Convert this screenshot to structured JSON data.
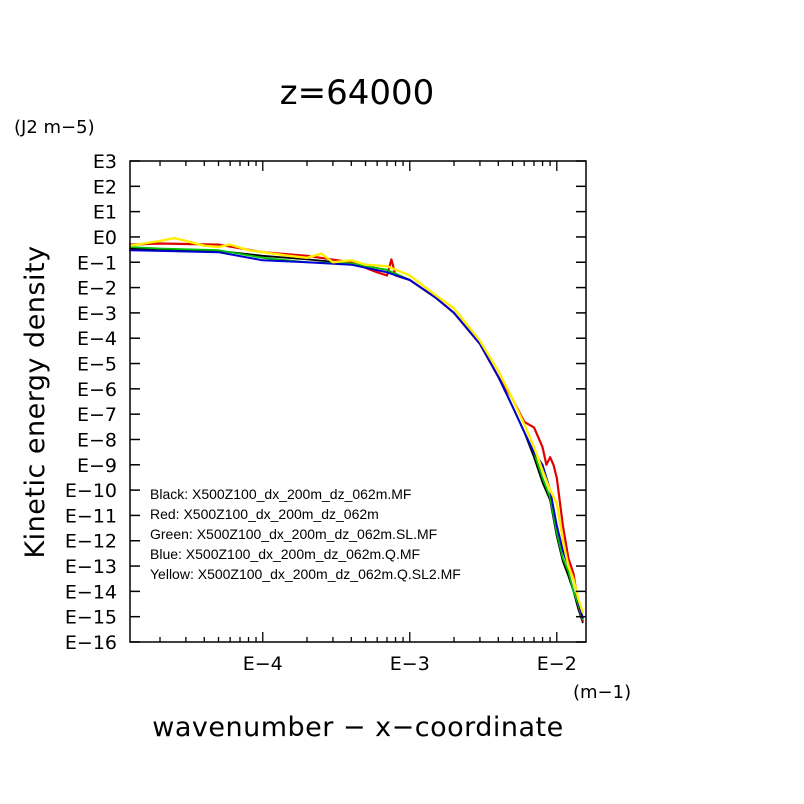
{
  "chart_data": {
    "type": "line",
    "title": "z=64000",
    "xlabel": "wavenumber − x−coordinate",
    "ylabel": "Kinetic energy density",
    "xunit": "(m−1)",
    "yunit": "(J2 m−5)",
    "x_scale": "log",
    "y_scale": "log",
    "xlim": [
      1.25e-05,
      0.0158
    ],
    "ylim": [
      1e-16,
      1000
    ],
    "x_ticks": [
      {
        "value": 0.0001,
        "label": "E−4"
      },
      {
        "value": 0.001,
        "label": "E−3"
      },
      {
        "value": 0.01,
        "label": "E−2"
      }
    ],
    "y_ticks": [
      {
        "value": 1000,
        "label": "E3"
      },
      {
        "value": 100,
        "label": "E2"
      },
      {
        "value": 10,
        "label": "E1"
      },
      {
        "value": 1,
        "label": "E0"
      },
      {
        "value": 0.1,
        "label": "E−1"
      },
      {
        "value": 0.01,
        "label": "E−2"
      },
      {
        "value": 0.001,
        "label": "E−3"
      },
      {
        "value": 0.0001,
        "label": "E−4"
      },
      {
        "value": 1e-05,
        "label": "E−5"
      },
      {
        "value": 1e-06,
        "label": "E−6"
      },
      {
        "value": 1e-07,
        "label": "E−7"
      },
      {
        "value": 1e-08,
        "label": "E−8"
      },
      {
        "value": 1e-09,
        "label": "E−9"
      },
      {
        "value": 1e-10,
        "label": "E−10"
      },
      {
        "value": 1e-11,
        "label": "E−11"
      },
      {
        "value": 1e-12,
        "label": "E−12"
      },
      {
        "value": 1e-13,
        "label": "E−13"
      },
      {
        "value": 1e-14,
        "label": "E−14"
      },
      {
        "value": 1e-15,
        "label": "E−15"
      },
      {
        "value": 1e-16,
        "label": "E−16"
      }
    ],
    "grid": false,
    "legend_position": "bottom-left",
    "legend": [
      "Black: X500Z100_dx_200m_dz_062m.MF",
      "Red: X500Z100_dx_200m_dz_062m",
      "Green: X500Z100_dx_200m_dz_062m.SL.MF",
      "Blue: X500Z100_dx_200m_dz_062m.Q.MF",
      "Yellow: X500Z100_dx_200m_dz_062m.Q.SL2.MF"
    ],
    "series": [
      {
        "color": "#000000",
        "x": [
          1.25e-05,
          2e-05,
          5e-05,
          0.0001,
          0.0002,
          0.0004,
          0.0007,
          0.001,
          0.0015,
          0.002,
          0.003,
          0.004,
          0.005,
          0.006,
          0.007,
          0.008,
          0.009,
          0.01,
          0.011,
          0.012,
          0.013,
          0.014,
          0.015
        ],
        "y": [
          0.35,
          0.3,
          0.28,
          0.18,
          0.13,
          0.09,
          0.05,
          0.02,
          0.004,
          0.001,
          6e-05,
          3e-06,
          2e-07,
          2e-08,
          2e-09,
          2e-10,
          4e-11,
          1.5e-12,
          1.5e-13,
          4e-14,
          1e-14,
          2e-15,
          6e-16
        ]
      },
      {
        "color": "#e00000",
        "x": [
          1.25e-05,
          2e-05,
          5e-05,
          0.0001,
          0.0002,
          0.0004,
          0.0006,
          0.0007,
          0.00075,
          0.0008,
          0.001,
          0.0015,
          0.002,
          0.003,
          0.004,
          0.005,
          0.006,
          0.007,
          0.008,
          0.0085,
          0.009,
          0.0095,
          0.01,
          0.011,
          0.012,
          0.013,
          0.014,
          0.015
        ],
        "y": [
          0.5,
          0.55,
          0.5,
          0.25,
          0.18,
          0.1,
          0.04,
          0.03,
          0.13,
          0.03,
          0.02,
          0.004,
          0.001,
          6e-05,
          3e-06,
          4e-07,
          5e-08,
          3e-08,
          5e-09,
          1e-09,
          2e-09,
          1e-09,
          3e-10,
          4e-12,
          2e-13,
          5e-14,
          3e-15,
          7e-16
        ]
      },
      {
        "color": "#00c000",
        "x": [
          1.25e-05,
          2e-05,
          5e-05,
          0.0001,
          0.0002,
          0.0004,
          0.0007,
          0.001,
          0.0015,
          0.002,
          0.003,
          0.004,
          0.005,
          0.006,
          0.007,
          0.008,
          0.009,
          0.01,
          0.011,
          0.012,
          0.013,
          0.014,
          0.015
        ],
        "y": [
          0.4,
          0.35,
          0.3,
          0.15,
          0.1,
          0.09,
          0.05,
          0.02,
          0.004,
          0.001,
          6e-05,
          3e-06,
          2e-07,
          2e-08,
          3e-09,
          3e-10,
          5e-11,
          2e-12,
          2e-13,
          6e-14,
          1e-14,
          3e-15,
          8e-16
        ]
      },
      {
        "color": "#0000d0",
        "x": [
          1.25e-05,
          2e-05,
          5e-05,
          0.0001,
          0.0002,
          0.0004,
          0.0007,
          0.001,
          0.0015,
          0.002,
          0.003,
          0.004,
          0.005,
          0.006,
          0.007,
          0.008,
          0.009,
          0.01,
          0.011,
          0.012,
          0.013,
          0.014,
          0.015
        ],
        "y": [
          0.3,
          0.28,
          0.25,
          0.12,
          0.1,
          0.08,
          0.04,
          0.02,
          0.004,
          0.001,
          6e-05,
          3e-06,
          2e-07,
          2e-08,
          3e-09,
          1e-09,
          1e-10,
          4e-12,
          4e-13,
          1e-13,
          3e-14,
          4e-15,
          9e-16
        ]
      },
      {
        "color": "#ffee00",
        "x": [
          1.25e-05,
          2e-05,
          2.5e-05,
          3e-05,
          4e-05,
          5e-05,
          6e-05,
          8e-05,
          0.0001,
          0.00015,
          0.0002,
          0.00025,
          0.0003,
          0.0004,
          0.0005,
          0.0007,
          0.001,
          0.0015,
          0.002,
          0.003,
          0.004,
          0.005,
          0.006,
          0.007,
          0.008,
          0.009,
          0.01,
          0.011,
          0.012,
          0.013,
          0.014,
          0.015
        ],
        "y": [
          0.45,
          0.7,
          0.9,
          0.7,
          0.45,
          0.4,
          0.5,
          0.3,
          0.25,
          0.18,
          0.15,
          0.22,
          0.1,
          0.12,
          0.08,
          0.07,
          0.03,
          0.005,
          0.0015,
          8e-05,
          5e-06,
          4e-07,
          4e-08,
          5e-09,
          6e-10,
          1e-10,
          3e-11,
          1e-12,
          1e-13,
          3e-14,
          5e-15,
          1.5e-15
        ]
      }
    ]
  }
}
